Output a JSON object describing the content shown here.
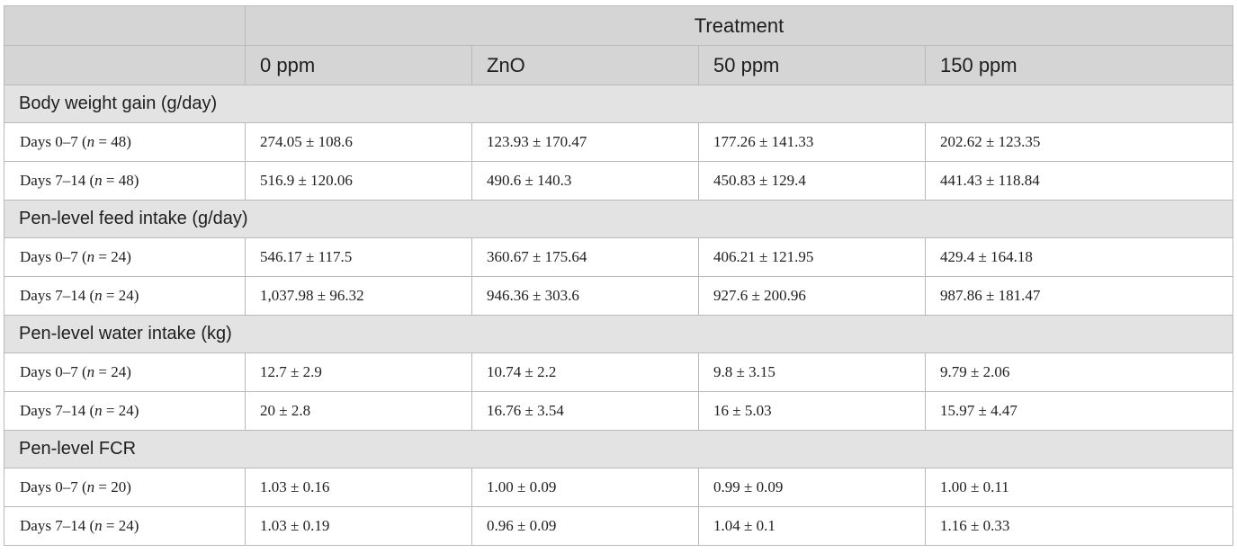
{
  "header": {
    "span_label": "Treatment",
    "columns": [
      "0 ppm",
      "ZnO",
      "50 ppm",
      "150 ppm"
    ]
  },
  "sections": [
    {
      "title": "Body weight gain (g/day)",
      "rows": [
        {
          "period": "Days 0–7 (",
          "n_symbol": "n",
          "n_value": " = 48)",
          "values": [
            "274.05 ± 108.6",
            "123.93 ± 170.47",
            "177.26 ± 141.33",
            "202.62 ± 123.35"
          ]
        },
        {
          "period": "Days 7–14 (",
          "n_symbol": "n",
          "n_value": " = 48)",
          "values": [
            "516.9 ± 120.06",
            "490.6 ± 140.3",
            "450.83 ± 129.4",
            "441.43 ± 118.84"
          ]
        }
      ]
    },
    {
      "title": "Pen-level feed intake (g/day)",
      "rows": [
        {
          "period": "Days 0–7 (",
          "n_symbol": "n",
          "n_value": " = 24)",
          "values": [
            "546.17 ± 117.5",
            "360.67 ± 175.64",
            "406.21 ± 121.95",
            "429.4 ± 164.18"
          ]
        },
        {
          "period": "Days 7–14 (",
          "n_symbol": "n",
          "n_value": " = 24)",
          "values": [
            "1,037.98 ± 96.32",
            "946.36 ± 303.6",
            "927.6 ± 200.96",
            "987.86 ± 181.47"
          ]
        }
      ]
    },
    {
      "title": "Pen-level water intake (kg)",
      "rows": [
        {
          "period": "Days 0–7 (",
          "n_symbol": "n",
          "n_value": " = 24)",
          "values": [
            "12.7 ± 2.9",
            "10.74 ± 2.2",
            "9.8 ± 3.15",
            "9.79 ± 2.06"
          ]
        },
        {
          "period": "Days 7–14 (",
          "n_symbol": "n",
          "n_value": " = 24)",
          "values": [
            "20 ± 2.8",
            "16.76 ± 3.54",
            "16 ± 5.03",
            "15.97 ± 4.47"
          ]
        }
      ]
    },
    {
      "title": "Pen-level FCR",
      "rows": [
        {
          "period": "Days 0–7 (",
          "n_symbol": "n",
          "n_value": " = 20)",
          "values": [
            "1.03 ± 0.16",
            "1.00 ± 0.09",
            "0.99 ± 0.09",
            "1.00 ± 0.11"
          ]
        },
        {
          "period": "Days 7–14 (",
          "n_symbol": "n",
          "n_value": " = 24)",
          "values": [
            "1.03 ± 0.19",
            "0.96 ± 0.09",
            "1.04 ± 0.1",
            "1.16 ± 0.33"
          ]
        }
      ]
    }
  ]
}
